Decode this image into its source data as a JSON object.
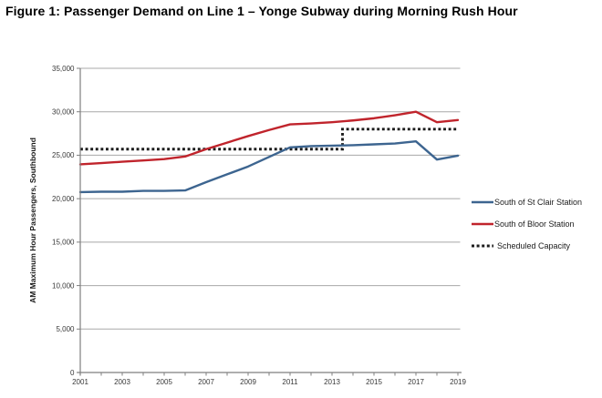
{
  "figure_title": "Figure 1: Passenger Demand on Line 1 – Yonge Subway during Morning Rush Hour",
  "chart_data": {
    "type": "line",
    "title": "Figure 1: Passenger Demand on Line 1 – Yonge Subway during Morning Rush Hour",
    "xlabel": "",
    "ylabel": "AM Maximum Hour Passengers, Southbound",
    "ylim": [
      0,
      35000
    ],
    "ytick_step": 5000,
    "ytick_labels": [
      "0",
      "5,000",
      "10,000",
      "15,000",
      "20,000",
      "25,000",
      "30,000",
      "35,000"
    ],
    "x": [
      2001,
      2002,
      2003,
      2004,
      2005,
      2006,
      2007,
      2008,
      2009,
      2010,
      2011,
      2012,
      2013,
      2014,
      2015,
      2016,
      2017,
      2018,
      2019
    ],
    "xtick_labels": [
      "2001",
      "2003",
      "2005",
      "2007",
      "2009",
      "2011",
      "2013",
      "2015",
      "2017",
      "2019"
    ],
    "grid": "horizontal-only",
    "legend_position": "right",
    "series": [
      {
        "name": "South of St Clair Station",
        "color": "#3d6590",
        "style": "solid",
        "values": [
          20750,
          20800,
          20800,
          20900,
          20900,
          20950,
          21900,
          22800,
          23700,
          24800,
          25900,
          26050,
          26100,
          26150,
          26250,
          26350,
          26600,
          24500,
          24950
        ]
      },
      {
        "name": "South of Bloor Station",
        "color": "#c0242c",
        "style": "solid",
        "values": [
          23950,
          24100,
          24250,
          24400,
          24550,
          24850,
          25700,
          26450,
          27200,
          27900,
          28550,
          28650,
          28800,
          29000,
          29250,
          29600,
          30000,
          28800,
          29050
        ]
      },
      {
        "name": "Scheduled Capacity",
        "color": "#1c1c1c",
        "style": "dotted-step",
        "step": {
          "before": 25700,
          "after": 28000,
          "step_x": 2013.5
        },
        "values": [
          25700,
          25700,
          25700,
          25700,
          25700,
          25700,
          25700,
          25700,
          25700,
          25700,
          25700,
          25700,
          25700,
          28000,
          28000,
          28000,
          28000,
          28000,
          28000
        ]
      }
    ],
    "colors": {
      "gridline": "#a8a8a8",
      "axis": "#7f7f7f",
      "tick_text": "#383838"
    }
  }
}
